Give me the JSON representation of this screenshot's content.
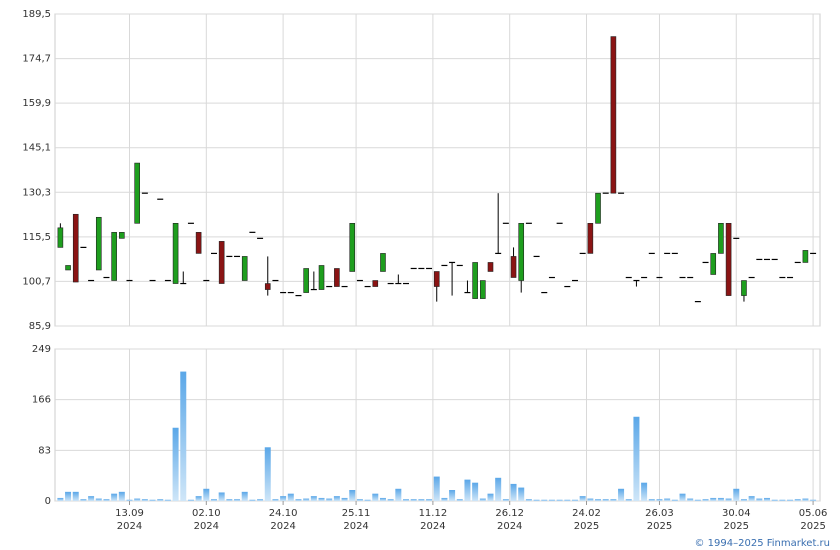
{
  "chart_data": {
    "type": "candlestick",
    "up_color": "#1e9e1e",
    "down_color": "#8b1414",
    "volume_color": "#7fbfee",
    "grid": true,
    "footer": "© 1994–2025 Finmarket.ru",
    "xlim": [
      -0.7,
      98.9
    ],
    "xticks": [
      {
        "value": 9,
        "label": "13.09 2024"
      },
      {
        "value": 19,
        "label": "02.10 2024"
      },
      {
        "value": 29,
        "label": "24.10 2024"
      },
      {
        "value": 38.5,
        "label": "25.11 2024"
      },
      {
        "value": 48.5,
        "label": "11.12 2024"
      },
      {
        "value": 58.5,
        "label": "26.12 2024"
      },
      {
        "value": 68.5,
        "label": "24.02 2025"
      },
      {
        "value": 78,
        "label": "26.03 2025"
      },
      {
        "value": 88,
        "label": "30.04 2025"
      },
      {
        "value": 98,
        "label": "05.06 2025"
      }
    ],
    "ylim": [
      85.9,
      189.5
    ],
    "yticks": [
      {
        "value": 85.9,
        "label": "85,9"
      },
      {
        "value": 100.7,
        "label": "100,7"
      },
      {
        "value": 115.5,
        "label": "115,5"
      },
      {
        "value": 130.3,
        "label": "130,3"
      },
      {
        "value": 145.1,
        "label": "145,1"
      },
      {
        "value": 159.9,
        "label": "159,9"
      },
      {
        "value": 174.7,
        "label": "174,7"
      },
      {
        "value": 189.5,
        "label": "189,5"
      }
    ],
    "y2lim": [
      0,
      249
    ],
    "y2ticks": [
      0,
      83,
      166,
      249
    ],
    "open": [
      112,
      104.5,
      123,
      112,
      101,
      104.5,
      102,
      101,
      115,
      101,
      120,
      130,
      101,
      128,
      101,
      100,
      100,
      120,
      117,
      101,
      110,
      114,
      109,
      109,
      101,
      117,
      115,
      100,
      101,
      97,
      97,
      96,
      97,
      98,
      98,
      99,
      105,
      99,
      104,
      101,
      99,
      101,
      104,
      100,
      100,
      100,
      105,
      105,
      105,
      104,
      106,
      107,
      106,
      97,
      95,
      95,
      107,
      110,
      120,
      109,
      101,
      120,
      109,
      97,
      102,
      120,
      99,
      101,
      110,
      120,
      120,
      130,
      182,
      130,
      102,
      101,
      102,
      110,
      102,
      110,
      110,
      102,
      102,
      94,
      107,
      103,
      110,
      120,
      115,
      96,
      102,
      108,
      108,
      108,
      102,
      102,
      107,
      107,
      110
    ],
    "high": [
      120,
      106,
      123,
      112,
      101,
      122,
      102,
      117,
      117,
      101,
      140,
      130,
      101,
      128,
      101,
      120,
      104,
      120,
      117,
      101,
      110,
      114,
      109,
      109,
      109,
      117,
      115,
      109,
      101,
      97,
      97,
      96,
      105,
      104,
      106,
      99,
      105,
      99,
      120,
      101,
      99,
      101,
      110,
      100,
      103,
      100,
      105,
      105,
      105,
      104,
      106,
      107,
      106,
      101,
      107,
      101,
      107,
      130,
      120,
      112,
      120,
      120,
      109,
      97,
      102,
      120,
      99,
      101,
      110,
      120,
      130,
      130,
      182,
      130,
      102,
      101,
      102,
      110,
      102,
      110,
      110,
      102,
      102,
      94,
      107,
      110,
      120,
      120,
      115,
      101,
      102,
      108,
      108,
      108,
      102,
      102,
      107,
      111,
      110
    ],
    "low": [
      112,
      104.5,
      100.5,
      112,
      101,
      104.5,
      102,
      101,
      115,
      101,
      120,
      130,
      101,
      128,
      101,
      100,
      100,
      120,
      110,
      101,
      110,
      100,
      109,
      109,
      101,
      117,
      115,
      96,
      101,
      97,
      97,
      96,
      97,
      98,
      98,
      99,
      99,
      99,
      104,
      101,
      99,
      99,
      104,
      100,
      100,
      100,
      105,
      105,
      105,
      94,
      106,
      96,
      106,
      97,
      95,
      95,
      104,
      110,
      120,
      102,
      97,
      120,
      109,
      97,
      102,
      120,
      99,
      101,
      110,
      110,
      120,
      130,
      130,
      130,
      102,
      99,
      102,
      110,
      102,
      110,
      110,
      102,
      102,
      94,
      107,
      103,
      110,
      96,
      115,
      94,
      102,
      108,
      108,
      108,
      102,
      102,
      107,
      107,
      110
    ],
    "close": [
      118.5,
      106,
      100.5,
      112,
      101,
      122,
      102,
      117,
      117,
      101,
      140,
      130,
      101,
      128,
      101,
      120,
      100,
      120,
      110,
      101,
      110,
      100,
      109,
      109,
      109,
      117,
      115,
      98,
      101,
      97,
      97,
      96,
      105,
      98,
      106,
      99,
      99,
      99,
      120,
      101,
      99,
      99,
      110,
      100,
      100,
      100,
      105,
      105,
      105,
      99,
      106,
      107,
      106,
      97,
      107,
      101,
      104,
      110,
      120,
      102,
      120,
      120,
      109,
      97,
      102,
      120,
      99,
      101,
      110,
      110,
      130,
      130,
      130,
      130,
      102,
      101,
      102,
      110,
      102,
      110,
      110,
      102,
      102,
      94,
      107,
      110,
      120,
      96,
      115,
      101,
      102,
      108,
      108,
      108,
      102,
      102,
      107,
      111,
      110
    ],
    "volume": [
      5,
      15,
      15,
      3,
      8,
      4,
      3,
      12,
      15,
      2,
      4,
      3,
      2,
      3,
      2,
      120,
      212,
      2,
      8,
      20,
      3,
      14,
      3,
      3,
      15,
      2,
      3,
      88,
      3,
      8,
      12,
      3,
      4,
      8,
      5,
      4,
      8,
      5,
      18,
      3,
      2,
      12,
      5,
      3,
      20,
      3,
      3,
      3,
      3,
      40,
      5,
      18,
      3,
      35,
      30,
      4,
      12,
      38,
      3,
      28,
      22,
      3,
      2,
      2,
      2,
      2,
      2,
      2,
      8,
      4,
      3,
      3,
      3,
      20,
      3,
      138,
      30,
      3,
      3,
      4,
      2,
      12,
      4,
      2,
      3,
      5,
      5,
      4,
      20,
      3,
      8,
      4,
      5,
      2,
      2,
      2,
      3,
      4,
      2
    ]
  }
}
